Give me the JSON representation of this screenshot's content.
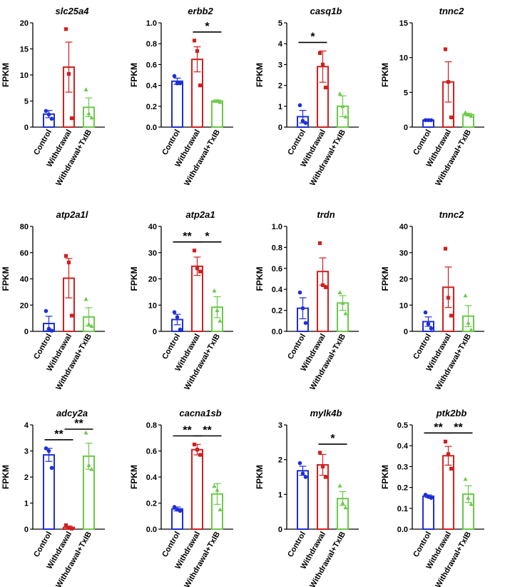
{
  "figure": {
    "ylabel": "FPKM",
    "categories": [
      "Control",
      "Withdrawal",
      "Withdrawal+TxIB"
    ],
    "colors": {
      "Control": "#1f2fd6",
      "Withdrawal": "#d21f1f",
      "Withdrawal+TxIB": "#6cc94a"
    },
    "markers": {
      "Control": "circle",
      "Withdrawal": "square",
      "Withdrawal+TxIB": "triangle"
    }
  },
  "chart_data": [
    {
      "type": "bar",
      "title": "slc25a4",
      "ylabel": "FPKM",
      "ylim": [
        0,
        20
      ],
      "yticks": [
        0,
        5,
        10,
        15,
        20
      ],
      "categories": [
        "Control",
        "Withdrawal",
        "Withdrawal+TxIB"
      ],
      "values": [
        2.5,
        11.5,
        3.8
      ],
      "errors": [
        0.7,
        4.8,
        1.8
      ],
      "points": [
        [
          3.1,
          2.4,
          1.6
        ],
        [
          18.8,
          10.2,
          1.7
        ],
        [
          7.2,
          2.6,
          1.8
        ]
      ],
      "significance": []
    },
    {
      "type": "bar",
      "title": "erbb2",
      "ylabel": "FPKM",
      "ylim": [
        0,
        1.0
      ],
      "yticks": [
        0.0,
        0.2,
        0.4,
        0.6,
        0.8,
        1.0
      ],
      "categories": [
        "Control",
        "Withdrawal",
        "Withdrawal+TxIB"
      ],
      "values": [
        0.44,
        0.65,
        0.25
      ],
      "errors": [
        0.03,
        0.12,
        0.01
      ],
      "points": [
        [
          0.49,
          0.42,
          0.42
        ],
        [
          0.83,
          0.73,
          0.4
        ],
        [
          0.25,
          0.25,
          0.24
        ]
      ],
      "significance": [
        {
          "from": 1,
          "to": 2,
          "label": "*"
        }
      ]
    },
    {
      "type": "bar",
      "title": "casq1b",
      "ylabel": "FPKM",
      "ylim": [
        0,
        5
      ],
      "yticks": [
        0,
        1,
        2,
        3,
        4,
        5
      ],
      "categories": [
        "Control",
        "Withdrawal",
        "Withdrawal+TxIB"
      ],
      "values": [
        0.5,
        2.9,
        1.0
      ],
      "errors": [
        0.3,
        0.75,
        0.5
      ],
      "points": [
        [
          1.05,
          0.3,
          0.2
        ],
        [
          3.55,
          3.0,
          1.9
        ],
        [
          1.6,
          1.0,
          0.5
        ]
      ],
      "significance": [
        {
          "from": 0,
          "to": 1,
          "label": "*"
        }
      ]
    },
    {
      "type": "bar",
      "title": "tnnc2",
      "ylabel": "FPKM",
      "ylim": [
        0,
        15
      ],
      "yticks": [
        0,
        5,
        10,
        15
      ],
      "categories": [
        "Control",
        "Withdrawal",
        "Withdrawal+TxIB"
      ],
      "values": [
        1.0,
        6.5,
        1.8
      ],
      "errors": [
        0.15,
        2.9,
        0.2
      ],
      "points": [
        [
          1.0,
          1.0,
          1.0
        ],
        [
          11.2,
          6.5,
          1.4
        ],
        [
          2.1,
          1.8,
          1.6
        ]
      ],
      "significance": []
    },
    {
      "type": "bar",
      "title": "atp2a1l",
      "ylabel": "FPKM",
      "ylim": [
        0,
        80
      ],
      "yticks": [
        0,
        20,
        40,
        60,
        80
      ],
      "categories": [
        "Control",
        "Withdrawal",
        "Withdrawal+TxIB"
      ],
      "values": [
        6.0,
        40.5,
        11.0
      ],
      "errors": [
        5.5,
        15.0,
        7.0
      ],
      "points": [
        [
          15.5,
          2.0,
          0.5
        ],
        [
          57.5,
          52.5,
          12.0
        ],
        [
          24.5,
          5.5,
          4.0
        ]
      ],
      "significance": []
    },
    {
      "type": "bar",
      "title": "atp2a1",
      "ylabel": "FPKM",
      "ylim": [
        0,
        40
      ],
      "yticks": [
        0,
        10,
        20,
        30,
        40
      ],
      "categories": [
        "Control",
        "Withdrawal",
        "Withdrawal+TxIB"
      ],
      "values": [
        4.5,
        24.8,
        9.2
      ],
      "errors": [
        2.0,
        3.5,
        4.0
      ],
      "points": [
        [
          7.3,
          5.4,
          0.7
        ],
        [
          30.8,
          24.0,
          22.8
        ],
        [
          15.5,
          8.0,
          4.0
        ]
      ],
      "significance": [
        {
          "from": 0,
          "to": 1,
          "label": "**"
        },
        {
          "from": 1,
          "to": 2,
          "label": "*"
        }
      ]
    },
    {
      "type": "bar",
      "title": "trdn",
      "ylabel": "FPKM",
      "ylim": [
        0,
        1.0
      ],
      "yticks": [
        0.0,
        0.2,
        0.4,
        0.6,
        0.8,
        1.0
      ],
      "categories": [
        "Control",
        "Withdrawal",
        "Withdrawal+TxIB"
      ],
      "values": [
        0.22,
        0.57,
        0.27
      ],
      "errors": [
        0.1,
        0.13,
        0.07
      ],
      "points": [
        [
          0.37,
          0.22,
          0.08
        ],
        [
          0.84,
          0.44,
          0.42
        ],
        [
          0.37,
          0.27,
          0.17
        ]
      ],
      "significance": []
    },
    {
      "type": "bar",
      "title": "tnnc2",
      "ylabel": "FPKM",
      "ylim": [
        0,
        40
      ],
      "yticks": [
        0,
        10,
        20,
        30,
        40
      ],
      "categories": [
        "Control",
        "Withdrawal",
        "Withdrawal+TxIB"
      ],
      "values": [
        3.7,
        16.8,
        5.8
      ],
      "errors": [
        1.8,
        7.7,
        4.0
      ],
      "points": [
        [
          7.2,
          2.8,
          1.1
        ],
        [
          31.5,
          12.8,
          6.0
        ],
        [
          13.6,
          3.2,
          0.6
        ]
      ],
      "significance": []
    },
    {
      "type": "bar",
      "title": "adcy2a",
      "ylabel": "FPKM",
      "ylim": [
        0,
        4
      ],
      "yticks": [
        0,
        1,
        2,
        3,
        4
      ],
      "categories": [
        "Control",
        "Withdrawal",
        "Withdrawal+TxIB"
      ],
      "values": [
        2.85,
        0.07,
        2.8
      ],
      "errors": [
        0.25,
        0.05,
        0.5
      ],
      "points": [
        [
          3.1,
          3.0,
          2.35
        ],
        [
          0.15,
          0.05,
          0.02
        ],
        [
          3.7,
          2.45,
          2.3
        ]
      ],
      "significance": [
        {
          "from": 0,
          "to": 1,
          "label": "**"
        },
        {
          "from": 1,
          "to": 2,
          "label": "**"
        }
      ]
    },
    {
      "type": "bar",
      "title": "cacna1sb",
      "ylabel": "FPKM",
      "ylim": [
        0,
        0.8
      ],
      "yticks": [
        0.0,
        0.2,
        0.4,
        0.6,
        0.8
      ],
      "categories": [
        "Control",
        "Withdrawal",
        "Withdrawal+TxIB"
      ],
      "values": [
        0.155,
        0.61,
        0.27
      ],
      "errors": [
        0.015,
        0.04,
        0.08
      ],
      "points": [
        [
          0.17,
          0.15,
          0.14
        ],
        [
          0.65,
          0.61,
          0.57
        ],
        [
          0.33,
          0.3,
          0.15
        ]
      ],
      "significance": [
        {
          "from": 0,
          "to": 1,
          "label": "**"
        },
        {
          "from": 1,
          "to": 2,
          "label": "**"
        }
      ]
    },
    {
      "type": "bar",
      "title": "mylk4b",
      "ylabel": "FPKM",
      "ylim": [
        0,
        3
      ],
      "yticks": [
        0,
        1,
        2,
        3
      ],
      "categories": [
        "Control",
        "Withdrawal",
        "Withdrawal+TxIB"
      ],
      "values": [
        1.68,
        1.85,
        0.88
      ],
      "errors": [
        0.13,
        0.3,
        0.2
      ],
      "points": [
        [
          1.9,
          1.6,
          1.5
        ],
        [
          2.2,
          1.8,
          1.5
        ],
        [
          1.25,
          0.75,
          0.62
        ]
      ],
      "significance": [
        {
          "from": 1,
          "to": 2,
          "label": "*"
        }
      ]
    },
    {
      "type": "bar",
      "title": "ptk2bb",
      "ylabel": "FPKM",
      "ylim": [
        0,
        0.5
      ],
      "yticks": [
        0.0,
        0.1,
        0.2,
        0.3,
        0.4,
        0.5
      ],
      "categories": [
        "Control",
        "Withdrawal",
        "Withdrawal+TxIB"
      ],
      "values": [
        0.158,
        0.352,
        0.168
      ],
      "errors": [
        0.006,
        0.045,
        0.04
      ],
      "points": [
        [
          0.165,
          0.155,
          0.15
        ],
        [
          0.42,
          0.36,
          0.29
        ],
        [
          0.24,
          0.15,
          0.12
        ]
      ],
      "significance": [
        {
          "from": 0,
          "to": 1,
          "label": "**"
        },
        {
          "from": 1,
          "to": 2,
          "label": "**"
        }
      ]
    }
  ]
}
